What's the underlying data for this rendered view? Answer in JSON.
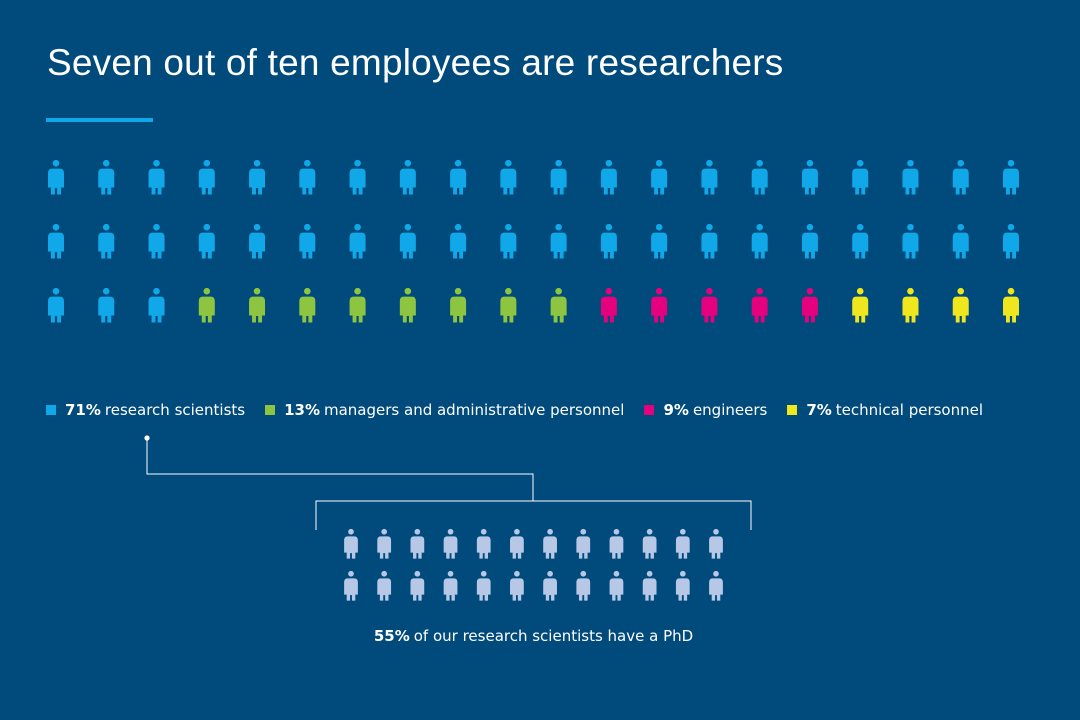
{
  "title": "Seven out of ten employees are researchers",
  "colors": {
    "background": "#004a7c",
    "accent": "#10a8e8",
    "research": "#10a8e8",
    "managers": "#8dc540",
    "engineers": "#e5007e",
    "technical": "#f0e61e",
    "phd": "#b7c8e6",
    "line": "#ffffff"
  },
  "icon": "person-icon",
  "chart_data": {
    "type": "pictogram",
    "title": "Seven out of ten employees are researchers",
    "total_icons": 60,
    "series": [
      {
        "name": "research scientists",
        "percent": 71,
        "label": "71%",
        "icons": 43,
        "color": "#10a8e8"
      },
      {
        "name": "managers and administrative personnel",
        "percent": 13,
        "label": "13%",
        "icons": 8,
        "color": "#8dc540"
      },
      {
        "name": "engineers",
        "percent": 9,
        "label": "9%",
        "icons": 5,
        "color": "#e5007e"
      },
      {
        "name": "technical personnel",
        "percent": 7,
        "label": "7%",
        "icons": 4,
        "color": "#f0e61e"
      }
    ],
    "breakout": {
      "of": "research scientists",
      "percent": 55,
      "label": "55%",
      "text": "of our research scientists have a PhD",
      "icons": 24,
      "color": "#b7c8e6"
    }
  }
}
